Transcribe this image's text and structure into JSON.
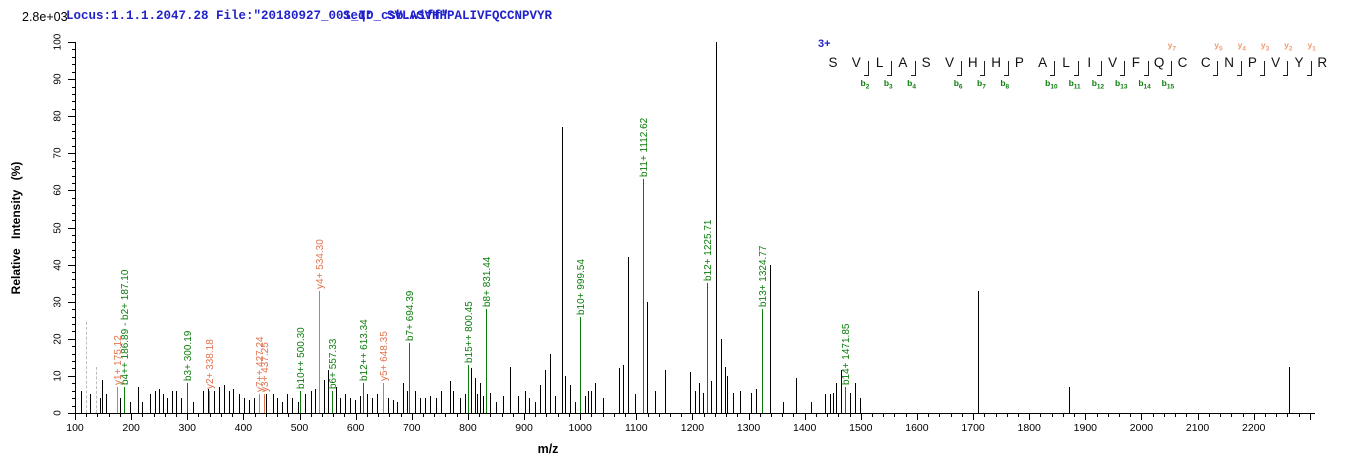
{
  "header": {
    "locus": "Locus:1.1.1.2047.28 File:\"20180927_001_ID_csb.wiff\"",
    "seq_label": "Seq:",
    "sequence": "SVLASVHHPALIVFQCCNPVYR",
    "base_peak_intensity": "2.8e+03"
  },
  "colors": {
    "header_blue": "#2222cc",
    "b_ion_green": "#0a7d0a",
    "y_ion_orange": "#e2734d",
    "y_ion_light": "#f09a72",
    "peak_black": "#000000",
    "dashed_gray": "#bdbdbd",
    "axis_black": "#000000"
  },
  "sequence_panel": {
    "charge": "3+",
    "residues": [
      "S",
      "V",
      "L",
      "A",
      "S",
      "V",
      "H",
      "H",
      "P",
      "A",
      "L",
      "I",
      "V",
      "F",
      "Q",
      "C",
      "C",
      "N",
      "P",
      "V",
      "Y",
      "R"
    ],
    "b_markers": [
      {
        "before_residue": 2,
        "label": "b2"
      },
      {
        "before_residue": 3,
        "label": "b3"
      },
      {
        "before_residue": 4,
        "label": "b4"
      },
      {
        "before_residue": 6,
        "label": "b6"
      },
      {
        "before_residue": 7,
        "label": "b7"
      },
      {
        "before_residue": 8,
        "label": "b8"
      },
      {
        "before_residue": 10,
        "label": "b10"
      },
      {
        "before_residue": 11,
        "label": "b11"
      },
      {
        "before_residue": 12,
        "label": "b12"
      },
      {
        "before_residue": 13,
        "label": "b13"
      },
      {
        "before_residue": 14,
        "label": "b14"
      },
      {
        "before_residue": 15,
        "label": "b15"
      }
    ],
    "y_markers": [
      {
        "before_residue": 15,
        "label": "y7"
      },
      {
        "before_residue": 17,
        "label": "y5"
      },
      {
        "before_residue": 18,
        "label": "y4"
      },
      {
        "before_residue": 19,
        "label": "y3"
      },
      {
        "before_residue": 20,
        "label": "y2"
      },
      {
        "before_residue": 21,
        "label": "y1"
      }
    ]
  },
  "chart_data": {
    "type": "bar",
    "subtype": "ms2-fragmentation-spectrum",
    "xlabel": "m/z",
    "ylabel": "Relative Intensity (%)",
    "xlim": [
      100,
      2310
    ],
    "ylim": [
      0,
      100
    ],
    "x_major_tick_step": 100,
    "x_minor_tick_step": 20,
    "x_label_max": 2200,
    "y_major_tick_step": 10,
    "y_minor_tick_step": 2,
    "grid": false,
    "legend": false,
    "annotated_peaks": [
      {
        "mz": 175.12,
        "intensity": 7,
        "label": "y1+ 175.12",
        "ion": "y"
      },
      {
        "mz": 187.1,
        "intensity": 7,
        "label": "b4++ 186.89 - b2+ 187.10",
        "ion": "b"
      },
      {
        "mz": 300.19,
        "intensity": 8,
        "label": "b3+ 300.19",
        "ion": "b"
      },
      {
        "mz": 338.18,
        "intensity": 6,
        "label": "y2+ 338.18",
        "ion": "y"
      },
      {
        "mz": 427.24,
        "intensity": 5,
        "label": "y7++ 427.24",
        "ion": "y"
      },
      {
        "mz": 437.25,
        "intensity": 5,
        "label": "y3+ 437.25",
        "ion": "y"
      },
      {
        "mz": 500.3,
        "intensity": 6,
        "label": "b10++ 500.30",
        "ion": "b"
      },
      {
        "mz": 534.3,
        "intensity": 33,
        "label": "y4+ 534.30",
        "ion": "y"
      },
      {
        "mz": 557.33,
        "intensity": 6,
        "label": "b6+ 557.33",
        "ion": "b"
      },
      {
        "mz": 613.34,
        "intensity": 8,
        "label": "b12++ 613.34",
        "ion": "b"
      },
      {
        "mz": 648.35,
        "intensity": 8,
        "label": "y5+ 648.35",
        "ion": "y"
      },
      {
        "mz": 694.39,
        "intensity": 19,
        "label": "b7+ 694.39",
        "ion": "b"
      },
      {
        "mz": 800.45,
        "intensity": 13,
        "label": "b15++ 800.45",
        "ion": "b"
      },
      {
        "mz": 831.44,
        "intensity": 28,
        "label": "b8+ 831.44",
        "ion": "b"
      },
      {
        "mz": 999.54,
        "intensity": 26,
        "label": "b10+ 999.54",
        "ion": "b"
      },
      {
        "mz": 1112.62,
        "intensity": 63,
        "label": "b11+ 1112.62",
        "ion": "b"
      },
      {
        "mz": 1225.71,
        "intensity": 35,
        "label": "b12+ 1225.71",
        "ion": "b"
      },
      {
        "mz": 1324.77,
        "intensity": 28,
        "label": "b13+ 1324.77",
        "ion": "b"
      },
      {
        "mz": 1471.85,
        "intensity": 7,
        "label": "b14+ 1471.85",
        "ion": "b"
      }
    ],
    "dashed_peaks": [
      {
        "mz": 120,
        "intensity": 24.5
      },
      {
        "mz": 137,
        "intensity": 12.5
      }
    ],
    "peaks": [
      [
        111,
        6
      ],
      [
        127,
        5
      ],
      [
        145,
        4
      ],
      [
        148,
        9
      ],
      [
        155,
        5
      ],
      [
        180,
        4
      ],
      [
        198,
        3
      ],
      [
        212,
        7
      ],
      [
        219,
        3
      ],
      [
        234,
        5
      ],
      [
        243,
        6
      ],
      [
        250,
        6.5
      ],
      [
        257,
        5
      ],
      [
        264,
        4
      ],
      [
        273,
        6
      ],
      [
        280,
        6
      ],
      [
        289,
        4
      ],
      [
        310,
        3
      ],
      [
        328,
        6
      ],
      [
        337,
        6.5
      ],
      [
        348,
        6
      ],
      [
        357,
        7
      ],
      [
        365,
        7.5
      ],
      [
        374,
        6
      ],
      [
        381,
        6.5
      ],
      [
        392,
        5
      ],
      [
        401,
        4
      ],
      [
        410,
        3.5
      ],
      [
        419,
        4
      ],
      [
        440,
        5
      ],
      [
        453,
        5
      ],
      [
        460,
        4
      ],
      [
        469,
        3
      ],
      [
        478,
        5
      ],
      [
        487,
        4
      ],
      [
        497,
        3
      ],
      [
        510,
        5
      ],
      [
        520,
        6
      ],
      [
        528,
        6.5
      ],
      [
        544,
        9
      ],
      [
        551,
        11.5
      ],
      [
        565,
        7
      ],
      [
        572,
        4
      ],
      [
        581,
        5
      ],
      [
        590,
        4
      ],
      [
        599,
        3.5
      ],
      [
        608,
        4.5
      ],
      [
        620,
        5
      ],
      [
        629,
        4
      ],
      [
        638,
        5
      ],
      [
        658,
        4
      ],
      [
        667,
        3.5
      ],
      [
        674,
        3
      ],
      [
        684,
        8
      ],
      [
        691,
        6
      ],
      [
        706,
        6
      ],
      [
        715,
        4
      ],
      [
        724,
        4
      ],
      [
        732,
        4.5
      ],
      [
        743,
        4
      ],
      [
        752,
        6
      ],
      [
        768,
        8.5
      ],
      [
        773,
        6
      ],
      [
        786,
        4
      ],
      [
        795,
        5
      ],
      [
        805,
        12
      ],
      [
        813,
        9.5
      ],
      [
        816,
        5
      ],
      [
        822,
        8
      ],
      [
        827,
        4.5
      ],
      [
        839,
        5.5
      ],
      [
        850,
        3
      ],
      [
        862,
        4.5
      ],
      [
        875,
        12.5
      ],
      [
        889,
        4.5
      ],
      [
        902,
        6
      ],
      [
        909,
        4
      ],
      [
        919,
        3
      ],
      [
        928,
        7.5
      ],
      [
        937,
        11.5
      ],
      [
        946,
        16
      ],
      [
        955,
        4.5
      ],
      [
        968,
        77
      ],
      [
        973,
        10
      ],
      [
        982,
        7.5
      ],
      [
        991,
        3
      ],
      [
        1008,
        4.5
      ],
      [
        1014,
        6
      ],
      [
        1019,
        6
      ],
      [
        1026,
        8
      ],
      [
        1041,
        4
      ],
      [
        1069,
        12
      ],
      [
        1076,
        13
      ],
      [
        1085,
        42
      ],
      [
        1097,
        5
      ],
      [
        1119,
        30
      ],
      [
        1133,
        6
      ],
      [
        1151,
        11.5
      ],
      [
        1196,
        11
      ],
      [
        1205,
        6
      ],
      [
        1212,
        8
      ],
      [
        1219,
        5.5
      ],
      [
        1233,
        8.5
      ],
      [
        1242,
        100
      ],
      [
        1251,
        20
      ],
      [
        1258,
        12.5
      ],
      [
        1262,
        10
      ],
      [
        1272,
        5.5
      ],
      [
        1285,
        6
      ],
      [
        1304,
        5.5
      ],
      [
        1313,
        6.5
      ],
      [
        1338,
        40
      ],
      [
        1361,
        3
      ],
      [
        1384,
        9.5
      ],
      [
        1411,
        3
      ],
      [
        1436,
        5
      ],
      [
        1445,
        5
      ],
      [
        1450,
        5.5
      ],
      [
        1456,
        8
      ],
      [
        1465,
        11.5
      ],
      [
        1481,
        5.5
      ],
      [
        1490,
        8
      ],
      [
        1498,
        4
      ],
      [
        1709,
        33
      ],
      [
        1871,
        7
      ],
      [
        2263,
        12.5
      ]
    ]
  }
}
